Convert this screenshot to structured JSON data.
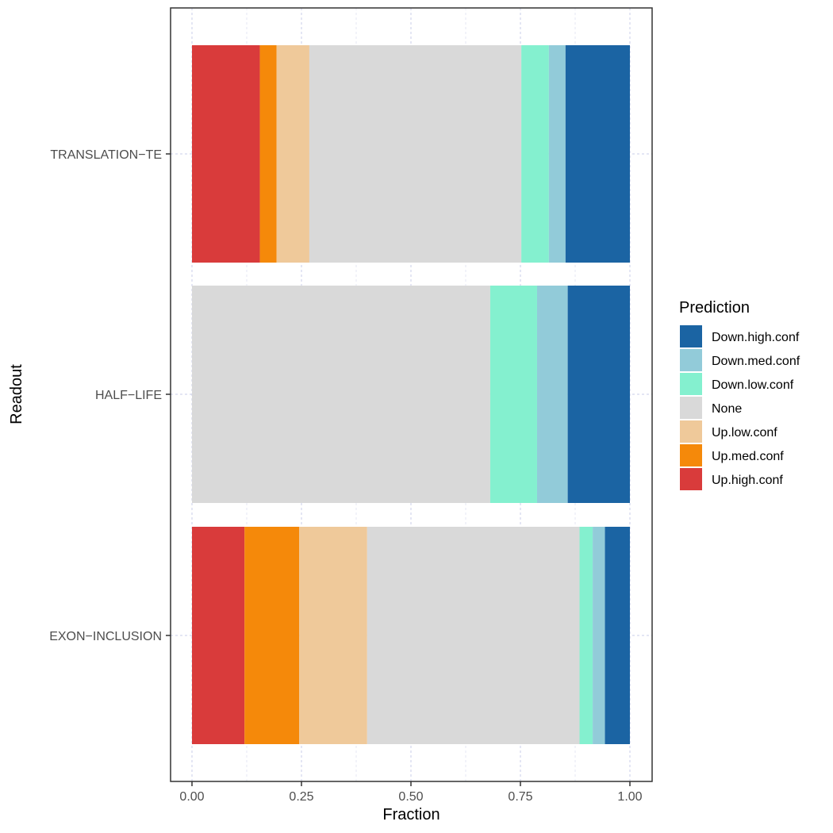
{
  "chart_data": {
    "type": "bar",
    "orientation": "horizontal",
    "stacked": true,
    "xlabel": "Fraction",
    "ylabel": "Readout",
    "xlim": [
      0,
      1
    ],
    "x_ticks": [
      "0.00",
      "0.25",
      "0.50",
      "0.75",
      "1.00"
    ],
    "x_tick_values": [
      0,
      0.25,
      0.5,
      0.75,
      1.0
    ],
    "grid": true,
    "legend": {
      "title": "Prediction",
      "position": "right",
      "entries": [
        "Down.high.conf",
        "Down.med.conf",
        "Down.low.conf",
        "None",
        "Up.low.conf",
        "Up.med.conf",
        "Up.high.conf"
      ]
    },
    "categories": [
      "TRANSLATION−TE",
      "HALF−LIFE",
      "EXON−INCLUSION"
    ],
    "series": [
      {
        "name": "Up.high.conf",
        "color": "#d93b3b",
        "values": [
          0.155,
          0.0,
          0.12
        ]
      },
      {
        "name": "Up.med.conf",
        "color": "#f5890a",
        "values": [
          0.038,
          0.0,
          0.125
        ]
      },
      {
        "name": "Up.low.conf",
        "color": "#efc99a",
        "values": [
          0.075,
          0.0,
          0.155
        ]
      },
      {
        "name": "None",
        "color": "#d9d9d9",
        "values": [
          0.484,
          0.681,
          0.485
        ]
      },
      {
        "name": "Down.low.conf",
        "color": "#84f0cf",
        "values": [
          0.063,
          0.107,
          0.03
        ]
      },
      {
        "name": "Down.med.conf",
        "color": "#92cbd9",
        "values": [
          0.038,
          0.07,
          0.028
        ]
      },
      {
        "name": "Down.high.conf",
        "color": "#1b64a3",
        "values": [
          0.147,
          0.142,
          0.057
        ]
      }
    ]
  }
}
